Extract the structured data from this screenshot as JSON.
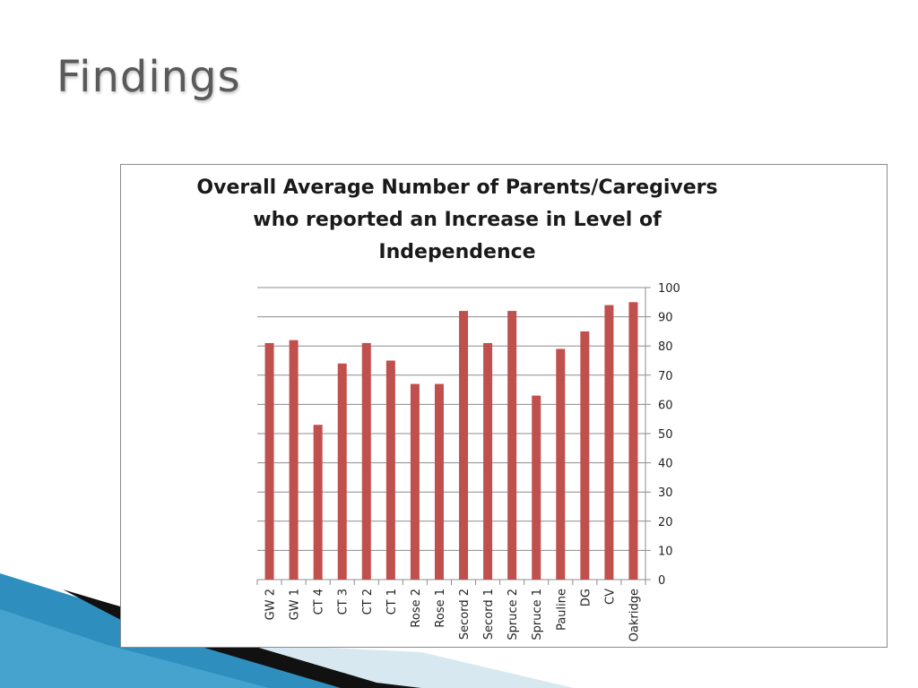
{
  "slide": {
    "title": "Findings"
  },
  "colors": {
    "bar": "#c0504d",
    "gridline": "#8c8c8c",
    "title_text": "#5a5a5a",
    "deco_light": "#d8e8f0",
    "deco_blue": "#2e8fbf",
    "deco_dark": "#111111"
  },
  "chart_data": {
    "type": "bar",
    "title": "Overall Average Number of Parents/Caregivers who reported an Increase in Level of Independence",
    "title_lines": [
      "Overall Average Number of Parents/Caregivers",
      "who reported an Increase in Level of",
      "Independence"
    ],
    "categories": [
      "GW 2",
      "GW 1",
      "CT 4",
      "CT 3",
      "CT 2",
      "CT 1",
      "Rose 2",
      "Rose 1",
      "Secord 2",
      "Secord 1",
      "Spruce 2",
      "Spruce 1",
      "Pauline",
      "DG",
      "CV",
      "Oakridge"
    ],
    "values": [
      81,
      82,
      53,
      74,
      81,
      75,
      67,
      67,
      92,
      81,
      92,
      63,
      79,
      85,
      94,
      95
    ],
    "ylim": [
      0,
      100
    ],
    "yticks": [
      0,
      10,
      20,
      30,
      40,
      50,
      60,
      70,
      80,
      90,
      100
    ],
    "yaxis_position": "right",
    "grid": true,
    "legend": false,
    "xlabel": "",
    "ylabel": ""
  }
}
